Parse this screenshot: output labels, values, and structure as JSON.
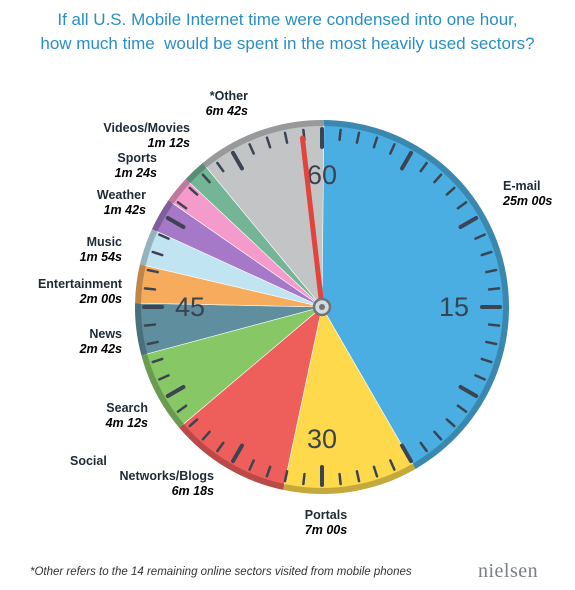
{
  "title_lines": [
    "If all U.S. Mobile Internet time were condensed into one hour,",
    "how much time  would be spent in the most heavily used sectors?"
  ],
  "chart_data": {
    "type": "pie",
    "dial_labels": [
      "60",
      "15",
      "30",
      "45"
    ],
    "series": [
      {
        "key": "email",
        "name": "E-mail",
        "value_label": "25m 00s",
        "minutes": 25.0,
        "color": "#4aaee2",
        "label_color": "#1e8dd0"
      },
      {
        "key": "portals",
        "name": "Portals",
        "value_label": "7m 00s",
        "minutes": 7.0,
        "color": "#fdd94b",
        "label_color": "#c98a00"
      },
      {
        "key": "social",
        "name": "Social\nNetworks/Blogs",
        "value_label": "6m 18s",
        "minutes": 6.3,
        "color": "#ee5f5b",
        "label_color": "#d92b27"
      },
      {
        "key": "search",
        "name": "Search",
        "value_label": "4m 12s",
        "minutes": 4.2,
        "color": "#88c766",
        "label_color": "#4aa033"
      },
      {
        "key": "news",
        "name": "News",
        "value_label": "2m 42s",
        "minutes": 2.7,
        "color": "#5f8f9e",
        "label_color": "#2e5d6b"
      },
      {
        "key": "entertainment",
        "name": "Entertainment",
        "value_label": "2m 00s",
        "minutes": 2.0,
        "color": "#f7ab5c",
        "label_color": "#e38318"
      },
      {
        "key": "music",
        "name": "Music",
        "value_label": "1m 54s",
        "minutes": 1.9,
        "color": "#c0e4f2",
        "label_color": "#6ec2e4"
      },
      {
        "key": "weather",
        "name": "Weather",
        "value_label": "1m 42s",
        "minutes": 1.7,
        "color": "#a579c7",
        "label_color": "#6e3396"
      },
      {
        "key": "sports",
        "name": "Sports",
        "value_label": "1m 24s",
        "minutes": 1.4,
        "color": "#f49bcb",
        "label_color": "#e0479a"
      },
      {
        "key": "videos",
        "name": "Videos/Movies",
        "value_label": "1m 12s",
        "minutes": 1.2,
        "color": "#73b596",
        "label_color": "#2f7a55"
      },
      {
        "key": "other",
        "name": "*Other",
        "value_label": "6m 42s",
        "minutes": 6.7,
        "color": "#c3c4c6",
        "label_color": "#8a8c8f"
      }
    ]
  },
  "footnote": "*Other refers to the 14 remaining online sectors visited from mobile phones",
  "brand": "nielsen"
}
